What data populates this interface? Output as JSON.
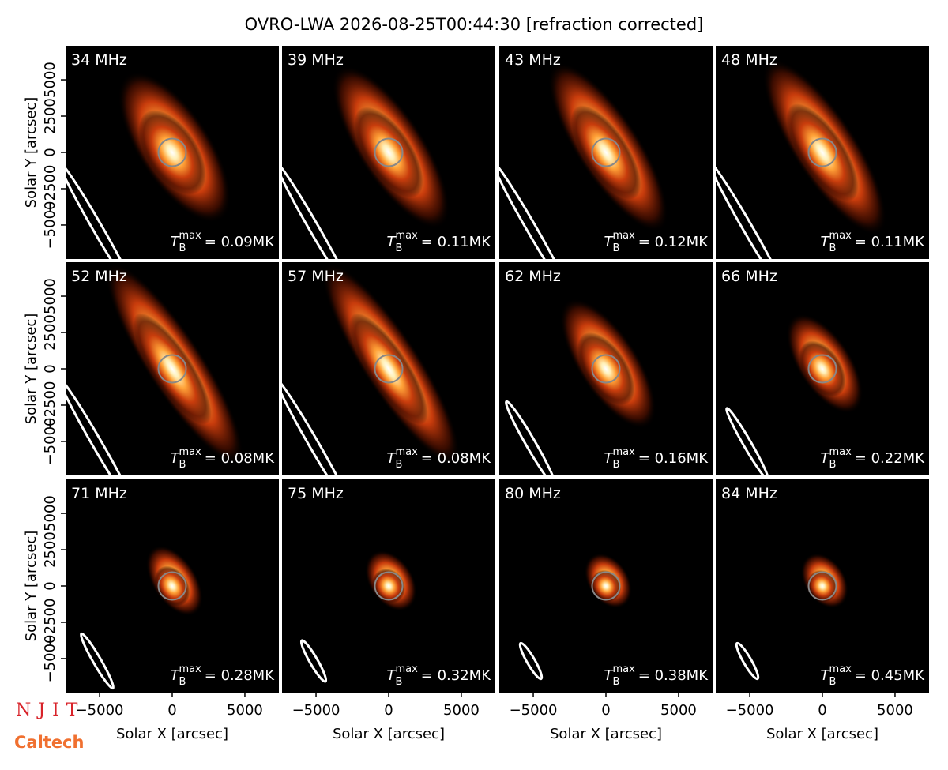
{
  "title": "OVRO-LWA 2026-08-25T00:44:30 [refraction corrected]",
  "logos": [
    "NJIT",
    "Caltech"
  ],
  "chart_data": [
    {
      "type": "image",
      "title": "34 MHz",
      "xlim": [
        -7340,
        7340
      ],
      "ylim": [
        -7340,
        7340
      ],
      "annotation": {
        "symbol": "T",
        "subscript": "B",
        "superscript": "max",
        "value": 0.09,
        "label": "= 0.09MK"
      },
      "ylabel": "Solar Y [arcsec]",
      "yticks": [
        {
          "value": -5000,
          "label": "−5000"
        },
        {
          "value": -2500,
          "label": "−2500"
        },
        0,
        2500,
        5000
      ]
    },
    {
      "type": "image",
      "title": "39 MHz",
      "xlim": [
        -7340,
        7340
      ],
      "ylim": [
        -7340,
        7340
      ],
      "annotation": {
        "symbol": "T",
        "subscript": "B",
        "superscript": "max",
        "value": 0.11,
        "label": "= 0.11MK"
      }
    },
    {
      "type": "image",
      "title": "43 MHz",
      "xlim": [
        -7340,
        7340
      ],
      "ylim": [
        -7340,
        7340
      ],
      "annotation": {
        "symbol": "T",
        "subscript": "B",
        "superscript": "max",
        "value": 0.12,
        "label": "= 0.12MK"
      }
    },
    {
      "type": "image",
      "title": "48 MHz",
      "xlim": [
        -7340,
        7340
      ],
      "ylim": [
        -7340,
        7340
      ],
      "annotation": {
        "symbol": "T",
        "subscript": "B",
        "superscript": "max",
        "value": 0.11,
        "label": "= 0.11MK"
      }
    },
    {
      "type": "image",
      "title": "52 MHz",
      "xlim": [
        -7340,
        7340
      ],
      "ylim": [
        -7340,
        7340
      ],
      "annotation": {
        "symbol": "T",
        "subscript": "B",
        "superscript": "max",
        "value": 0.08,
        "label": "= 0.08MK"
      },
      "ylabel": "Solar Y [arcsec]",
      "yticks": [
        {
          "value": -5000,
          "label": "−5000"
        },
        {
          "value": -2500,
          "label": "−2500"
        },
        0,
        2500,
        5000
      ]
    },
    {
      "type": "image",
      "title": "57 MHz",
      "xlim": [
        -7340,
        7340
      ],
      "ylim": [
        -7340,
        7340
      ],
      "annotation": {
        "symbol": "T",
        "subscript": "B",
        "superscript": "max",
        "value": 0.08,
        "label": "= 0.08MK"
      }
    },
    {
      "type": "image",
      "title": "62 MHz",
      "xlim": [
        -7340,
        7340
      ],
      "ylim": [
        -7340,
        7340
      ],
      "annotation": {
        "symbol": "T",
        "subscript": "B",
        "superscript": "max",
        "value": 0.16,
        "label": "= 0.16MK"
      }
    },
    {
      "type": "image",
      "title": "66 MHz",
      "xlim": [
        -7340,
        7340
      ],
      "ylim": [
        -7340,
        7340
      ],
      "annotation": {
        "symbol": "T",
        "subscript": "B",
        "superscript": "max",
        "value": 0.22,
        "label": "= 0.22MK"
      }
    },
    {
      "type": "image",
      "title": "71 MHz",
      "xlim": [
        -7340,
        7340
      ],
      "ylim": [
        -7340,
        7340
      ],
      "annotation": {
        "symbol": "T",
        "subscript": "B",
        "superscript": "max",
        "value": 0.28,
        "label": "= 0.28MK"
      },
      "ylabel": "Solar Y [arcsec]",
      "yticks": [
        {
          "value": -5000,
          "label": "−5000"
        },
        {
          "value": -2500,
          "label": "−2500"
        },
        0,
        2500,
        5000
      ],
      "xlabel": "Solar X [arcsec]",
      "xticks": [
        {
          "value": -5000,
          "label": "−5000"
        },
        0,
        5000
      ]
    },
    {
      "type": "image",
      "title": "75 MHz",
      "xlim": [
        -7340,
        7340
      ],
      "ylim": [
        -7340,
        7340
      ],
      "annotation": {
        "symbol": "T",
        "subscript": "B",
        "superscript": "max",
        "value": 0.32,
        "label": "= 0.32MK"
      },
      "xlabel": "Solar X [arcsec]",
      "xticks": [
        {
          "value": -5000,
          "label": "−5000"
        },
        0,
        5000
      ]
    },
    {
      "type": "image",
      "title": "80 MHz",
      "xlim": [
        -7340,
        7340
      ],
      "ylim": [
        -7340,
        7340
      ],
      "annotation": {
        "symbol": "T",
        "subscript": "B",
        "superscript": "max",
        "value": 0.38,
        "label": "= 0.38MK"
      },
      "xlabel": "Solar X [arcsec]",
      "xticks": [
        {
          "value": -5000,
          "label": "−5000"
        },
        0,
        5000
      ]
    },
    {
      "type": "image",
      "title": "84 MHz",
      "xlim": [
        -7340,
        7340
      ],
      "ylim": [
        -7340,
        7340
      ],
      "annotation": {
        "symbol": "T",
        "subscript": "B",
        "superscript": "max",
        "value": 0.45,
        "label": "= 0.45MK"
      },
      "xlabel": "Solar X [arcsec]",
      "xticks": [
        {
          "value": -5000,
          "label": "−5000"
        },
        0,
        5000
      ]
    }
  ]
}
